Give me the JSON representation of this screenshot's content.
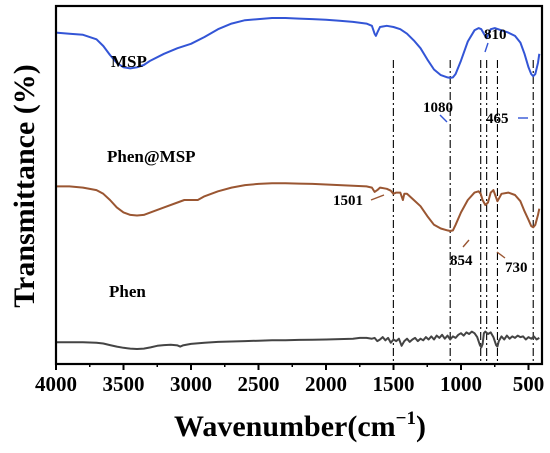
{
  "chart_data": {
    "type": "line",
    "xlabel_main": "Wavenumber(cm",
    "xlabel_sup": "−1",
    "xlabel_close": ")",
    "ylabel": "Transmittance (%)",
    "x_ticks": [
      "4000",
      "3500",
      "3000",
      "2500",
      "2000",
      "1500",
      "1000",
      "500"
    ],
    "x_range": [
      4000,
      400
    ],
    "x_reversed": true,
    "series": [
      {
        "name": "MSP",
        "color": "#3355d6",
        "points": [
          [
            4000,
            0.87
          ],
          [
            3900,
            0.86
          ],
          [
            3800,
            0.85
          ],
          [
            3700,
            0.81
          ],
          [
            3650,
            0.75
          ],
          [
            3600,
            0.67
          ],
          [
            3550,
            0.6
          ],
          [
            3500,
            0.56
          ],
          [
            3450,
            0.55
          ],
          [
            3400,
            0.56
          ],
          [
            3350,
            0.58
          ],
          [
            3300,
            0.62
          ],
          [
            3200,
            0.68
          ],
          [
            3100,
            0.73
          ],
          [
            3000,
            0.77
          ],
          [
            2900,
            0.83
          ],
          [
            2800,
            0.9
          ],
          [
            2700,
            0.95
          ],
          [
            2600,
            0.98
          ],
          [
            2500,
            0.99
          ],
          [
            2400,
            1.0
          ],
          [
            2300,
            1.0
          ],
          [
            2200,
            0.995
          ],
          [
            2100,
            0.99
          ],
          [
            2000,
            0.985
          ],
          [
            1900,
            0.975
          ],
          [
            1800,
            0.965
          ],
          [
            1700,
            0.95
          ],
          [
            1660,
            0.93
          ],
          [
            1640,
            0.86
          ],
          [
            1630,
            0.84
          ],
          [
            1620,
            0.87
          ],
          [
            1600,
            0.92
          ],
          [
            1550,
            0.93
          ],
          [
            1500,
            0.92
          ],
          [
            1450,
            0.9
          ],
          [
            1400,
            0.86
          ],
          [
            1350,
            0.8
          ],
          [
            1300,
            0.73
          ],
          [
            1250,
            0.63
          ],
          [
            1200,
            0.54
          ],
          [
            1150,
            0.49
          ],
          [
            1100,
            0.47
          ],
          [
            1080,
            0.465
          ],
          [
            1060,
            0.47
          ],
          [
            1040,
            0.5
          ],
          [
            1000,
            0.62
          ],
          [
            950,
            0.79
          ],
          [
            900,
            0.89
          ],
          [
            870,
            0.91
          ],
          [
            850,
            0.9
          ],
          [
            830,
            0.86
          ],
          [
            810,
            0.82
          ],
          [
            795,
            0.86
          ],
          [
            780,
            0.9
          ],
          [
            750,
            0.91
          ],
          [
            700,
            0.89
          ],
          [
            650,
            0.87
          ],
          [
            600,
            0.84
          ],
          [
            560,
            0.78
          ],
          [
            530,
            0.68
          ],
          [
            500,
            0.56
          ],
          [
            480,
            0.5
          ],
          [
            465,
            0.48
          ],
          [
            450,
            0.5
          ],
          [
            430,
            0.6
          ],
          [
            420,
            0.68
          ]
        ]
      },
      {
        "name": "Phen@MSP",
        "color": "#9a5632",
        "points": [
          [
            4000,
            0.61
          ],
          [
            3900,
            0.61
          ],
          [
            3800,
            0.6
          ],
          [
            3700,
            0.58
          ],
          [
            3650,
            0.55
          ],
          [
            3600,
            0.5
          ],
          [
            3550,
            0.44
          ],
          [
            3500,
            0.4
          ],
          [
            3450,
            0.38
          ],
          [
            3400,
            0.375
          ],
          [
            3350,
            0.38
          ],
          [
            3300,
            0.4
          ],
          [
            3200,
            0.44
          ],
          [
            3100,
            0.48
          ],
          [
            3050,
            0.5
          ],
          [
            3000,
            0.5
          ],
          [
            2950,
            0.5
          ],
          [
            2900,
            0.53
          ],
          [
            2800,
            0.57
          ],
          [
            2700,
            0.6
          ],
          [
            2600,
            0.62
          ],
          [
            2500,
            0.63
          ],
          [
            2400,
            0.635
          ],
          [
            2300,
            0.635
          ],
          [
            2200,
            0.632
          ],
          [
            2100,
            0.63
          ],
          [
            2000,
            0.625
          ],
          [
            1900,
            0.62
          ],
          [
            1800,
            0.615
          ],
          [
            1700,
            0.61
          ],
          [
            1660,
            0.6
          ],
          [
            1640,
            0.565
          ],
          [
            1620,
            0.58
          ],
          [
            1600,
            0.6
          ],
          [
            1550,
            0.59
          ],
          [
            1520,
            0.575
          ],
          [
            1501,
            0.55
          ],
          [
            1480,
            0.56
          ],
          [
            1450,
            0.56
          ],
          [
            1430,
            0.5
          ],
          [
            1420,
            0.55
          ],
          [
            1400,
            0.55
          ],
          [
            1350,
            0.5
          ],
          [
            1300,
            0.45
          ],
          [
            1250,
            0.37
          ],
          [
            1200,
            0.3
          ],
          [
            1150,
            0.27
          ],
          [
            1100,
            0.255
          ],
          [
            1080,
            0.25
          ],
          [
            1060,
            0.255
          ],
          [
            1040,
            0.3
          ],
          [
            1000,
            0.4
          ],
          [
            950,
            0.5
          ],
          [
            900,
            0.56
          ],
          [
            870,
            0.57
          ],
          [
            854,
            0.55
          ],
          [
            840,
            0.5
          ],
          [
            820,
            0.46
          ],
          [
            800,
            0.48
          ],
          [
            780,
            0.56
          ],
          [
            760,
            0.58
          ],
          [
            740,
            0.52
          ],
          [
            730,
            0.49
          ],
          [
            720,
            0.51
          ],
          [
            700,
            0.55
          ],
          [
            650,
            0.56
          ],
          [
            600,
            0.54
          ],
          [
            560,
            0.49
          ],
          [
            530,
            0.41
          ],
          [
            500,
            0.34
          ],
          [
            480,
            0.29
          ],
          [
            465,
            0.28
          ],
          [
            450,
            0.3
          ],
          [
            430,
            0.38
          ],
          [
            420,
            0.43
          ]
        ]
      },
      {
        "name": "Phen",
        "color": "#444444",
        "points": [
          [
            4000,
            0.085
          ],
          [
            3900,
            0.085
          ],
          [
            3800,
            0.085
          ],
          [
            3700,
            0.08
          ],
          [
            3650,
            0.07
          ],
          [
            3600,
            0.05
          ],
          [
            3550,
            0.03
          ],
          [
            3500,
            0.015
          ],
          [
            3450,
            0.005
          ],
          [
            3400,
            0.0
          ],
          [
            3350,
            0.005
          ],
          [
            3300,
            0.02
          ],
          [
            3250,
            0.04
          ],
          [
            3200,
            0.05
          ],
          [
            3150,
            0.055
          ],
          [
            3100,
            0.045
          ],
          [
            3080,
            0.03
          ],
          [
            3060,
            0.045
          ],
          [
            3000,
            0.065
          ],
          [
            2900,
            0.08
          ],
          [
            2800,
            0.09
          ],
          [
            2700,
            0.095
          ],
          [
            2600,
            0.1
          ],
          [
            2500,
            0.105
          ],
          [
            2400,
            0.11
          ],
          [
            2300,
            0.112
          ],
          [
            2200,
            0.115
          ],
          [
            2100,
            0.118
          ],
          [
            2000,
            0.12
          ],
          [
            1900,
            0.125
          ],
          [
            1800,
            0.13
          ],
          [
            1750,
            0.14
          ],
          [
            1700,
            0.14
          ],
          [
            1660,
            0.13
          ],
          [
            1640,
            0.14
          ],
          [
            1620,
            0.1
          ],
          [
            1600,
            0.12
          ],
          [
            1580,
            0.15
          ],
          [
            1560,
            0.11
          ],
          [
            1540,
            0.14
          ],
          [
            1520,
            0.08
          ],
          [
            1500,
            0.12
          ],
          [
            1480,
            0.1
          ],
          [
            1460,
            0.13
          ],
          [
            1440,
            0.04
          ],
          [
            1420,
            0.1
          ],
          [
            1400,
            0.13
          ],
          [
            1380,
            0.09
          ],
          [
            1360,
            0.12
          ],
          [
            1340,
            0.14
          ],
          [
            1320,
            0.1
          ],
          [
            1300,
            0.13
          ],
          [
            1280,
            0.11
          ],
          [
            1260,
            0.15
          ],
          [
            1240,
            0.12
          ],
          [
            1220,
            0.16
          ],
          [
            1200,
            0.12
          ],
          [
            1180,
            0.17
          ],
          [
            1160,
            0.14
          ],
          [
            1140,
            0.18
          ],
          [
            1120,
            0.13
          ],
          [
            1100,
            0.17
          ],
          [
            1080,
            0.12
          ],
          [
            1060,
            0.16
          ],
          [
            1040,
            0.14
          ],
          [
            1020,
            0.18
          ],
          [
            1000,
            0.2
          ],
          [
            980,
            0.17
          ],
          [
            960,
            0.21
          ],
          [
            940,
            0.19
          ],
          [
            920,
            0.22
          ],
          [
            900,
            0.2
          ],
          [
            880,
            0.15
          ],
          [
            860,
            0.05
          ],
          [
            850,
            0.02
          ],
          [
            840,
            0.06
          ],
          [
            830,
            0.2
          ],
          [
            820,
            0.22
          ],
          [
            800,
            0.19
          ],
          [
            780,
            0.21
          ],
          [
            760,
            0.15
          ],
          [
            740,
            0.05
          ],
          [
            730,
            0.03
          ],
          [
            720,
            0.1
          ],
          [
            700,
            0.16
          ],
          [
            680,
            0.12
          ],
          [
            660,
            0.17
          ],
          [
            640,
            0.13
          ],
          [
            620,
            0.16
          ],
          [
            600,
            0.14
          ],
          [
            580,
            0.17
          ],
          [
            560,
            0.15
          ],
          [
            540,
            0.16
          ],
          [
            520,
            0.12
          ],
          [
            500,
            0.15
          ],
          [
            480,
            0.13
          ],
          [
            460,
            0.16
          ],
          [
            440,
            0.12
          ],
          [
            420,
            0.14
          ]
        ]
      }
    ],
    "peak_labels": [
      {
        "text": "1080",
        "x": 1080,
        "series": 0
      },
      {
        "text": "810",
        "x": 810,
        "series": 0
      },
      {
        "text": "465",
        "x": 465,
        "series": 0
      },
      {
        "text": "1501",
        "x": 1501,
        "series": 1
      },
      {
        "text": "854",
        "x": 854,
        "series": 1
      },
      {
        "text": "730",
        "x": 730,
        "series": 1
      }
    ],
    "guide_lines_x": [
      1501,
      1080,
      854,
      810,
      730,
      465
    ],
    "grid": false,
    "legend": "none"
  }
}
